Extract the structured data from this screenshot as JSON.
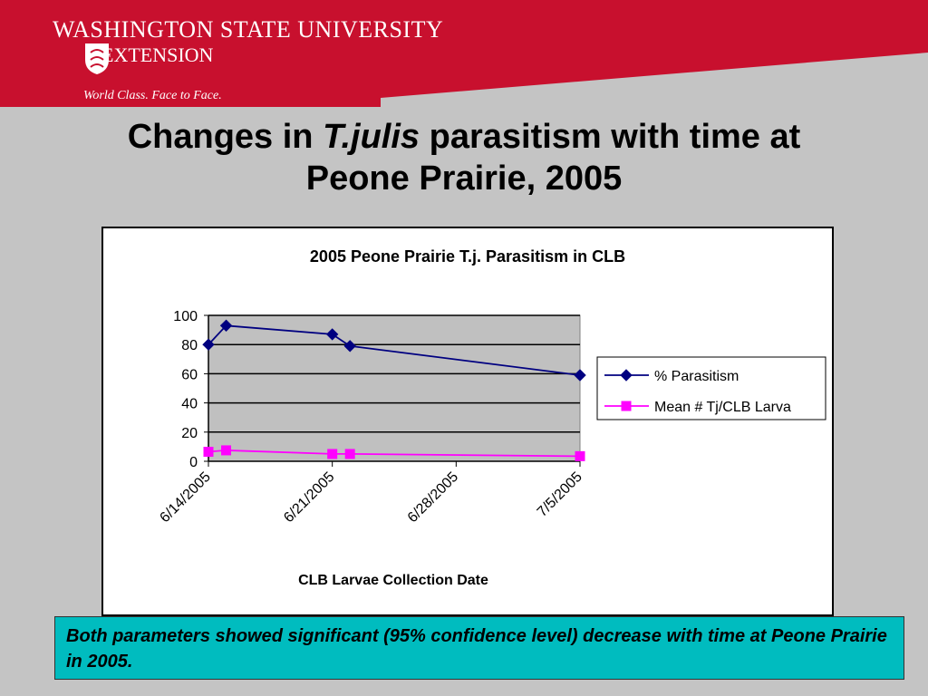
{
  "header": {
    "org_line1": "WASHINGTON STATE UNIVERSITY",
    "org_line2": "EXTENSION",
    "tagline": "World Class. Face to Face.",
    "brand_color": "#c8102e",
    "logo_icon": "wsu-seal-icon"
  },
  "slide": {
    "title_part1": "Changes in ",
    "title_italic": "T.julis",
    "title_part2": " parasitism with time at",
    "title_line2": "Peone Prairie, 2005"
  },
  "footer_note": "Both parameters showed significant (95% confidence level) decrease with time at Peone Prairie in 2005.",
  "chart_data": {
    "type": "line",
    "title": "2005 Peone Prairie T.j. Parasitism in CLB",
    "xlabel": "CLB Larvae Collection Date",
    "ylabel": "",
    "ylim": [
      0,
      100
    ],
    "yticks": [
      0,
      20,
      40,
      60,
      80,
      100
    ],
    "xlim": [
      "2005-06-14",
      "2005-07-05"
    ],
    "xticks": [
      "6/14/2005",
      "6/21/2005",
      "6/28/2005",
      "7/5/2005"
    ],
    "x": [
      "6/14/2005",
      "6/15/2005",
      "6/21/2005",
      "6/22/2005",
      "7/5/2005"
    ],
    "series": [
      {
        "name": "% Parasitism",
        "color": "#000080",
        "marker": "diamond",
        "values": [
          80,
          93,
          87,
          79,
          59
        ]
      },
      {
        "name": "Mean # Tj/CLB Larva",
        "color": "#ff00ff",
        "marker": "square",
        "values": [
          6.5,
          7.5,
          5,
          5,
          3.5
        ]
      }
    ],
    "grid": "horizontal",
    "plot_background": "#c0c0c0",
    "legend_position": "right"
  }
}
